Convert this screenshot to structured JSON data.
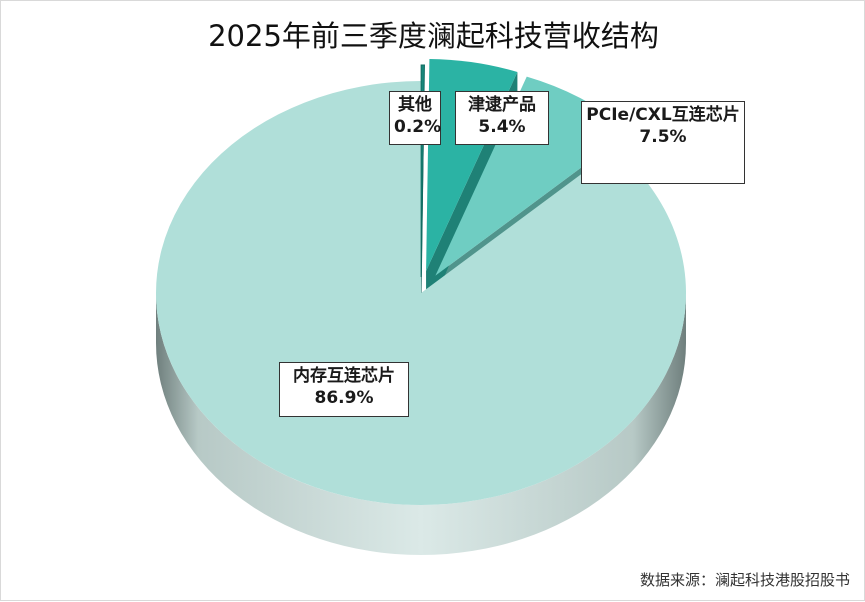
{
  "chart_data": {
    "type": "pie",
    "title": "2025年前三季度澜起科技营收结构",
    "slices": [
      {
        "name": "内存互连芯片",
        "value": 86.9,
        "label": "86.9%",
        "color": "#b0dfd9"
      },
      {
        "name": "PCIe/CXL互连芯片",
        "value": 7.5,
        "label": "7.5%",
        "color": "#6fcdc2"
      },
      {
        "name": "津逮产品",
        "value": 5.4,
        "label": "5.4%",
        "color": "#2bb3a4"
      },
      {
        "name": "其他",
        "value": 0.2,
        "label": "0.2%",
        "color": "#17877b"
      }
    ],
    "legend": "none",
    "style": "3d-exploded"
  },
  "source_note": "数据来源：澜起科技港股招股书"
}
